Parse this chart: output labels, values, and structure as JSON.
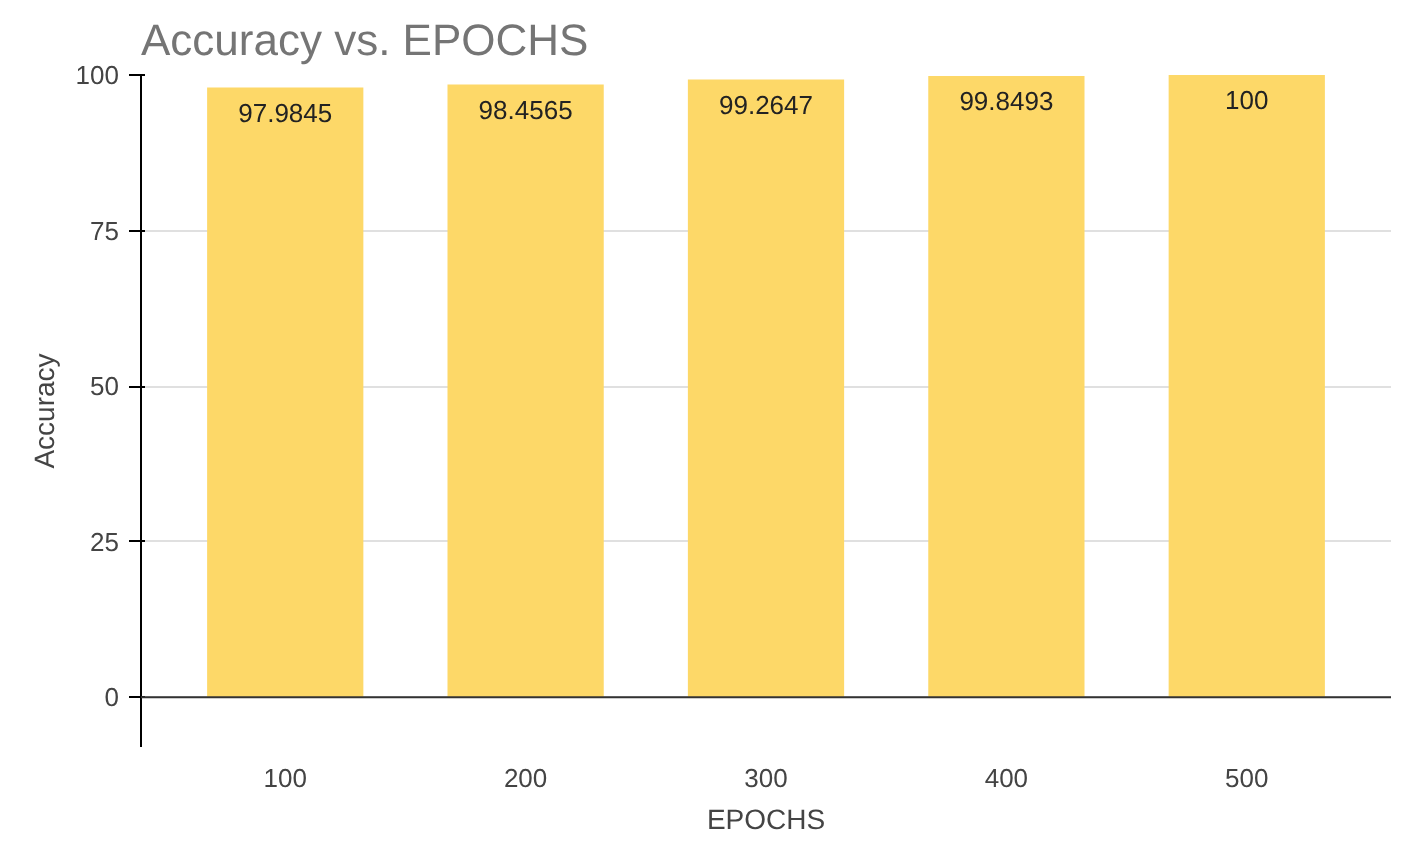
{
  "chart_data": {
    "type": "bar",
    "title": "Accuracy vs. EPOCHS",
    "xlabel": "EPOCHS",
    "ylabel": "Accuracy",
    "categories": [
      "100",
      "200",
      "300",
      "400",
      "500"
    ],
    "values": [
      97.9845,
      98.4565,
      99.2647,
      99.8493,
      100
    ],
    "color": "#fdd868",
    "ylim": [
      -8,
      100
    ],
    "yticks": [
      0,
      25,
      50,
      75,
      100
    ],
    "grid": "y",
    "data_labels": true
  }
}
